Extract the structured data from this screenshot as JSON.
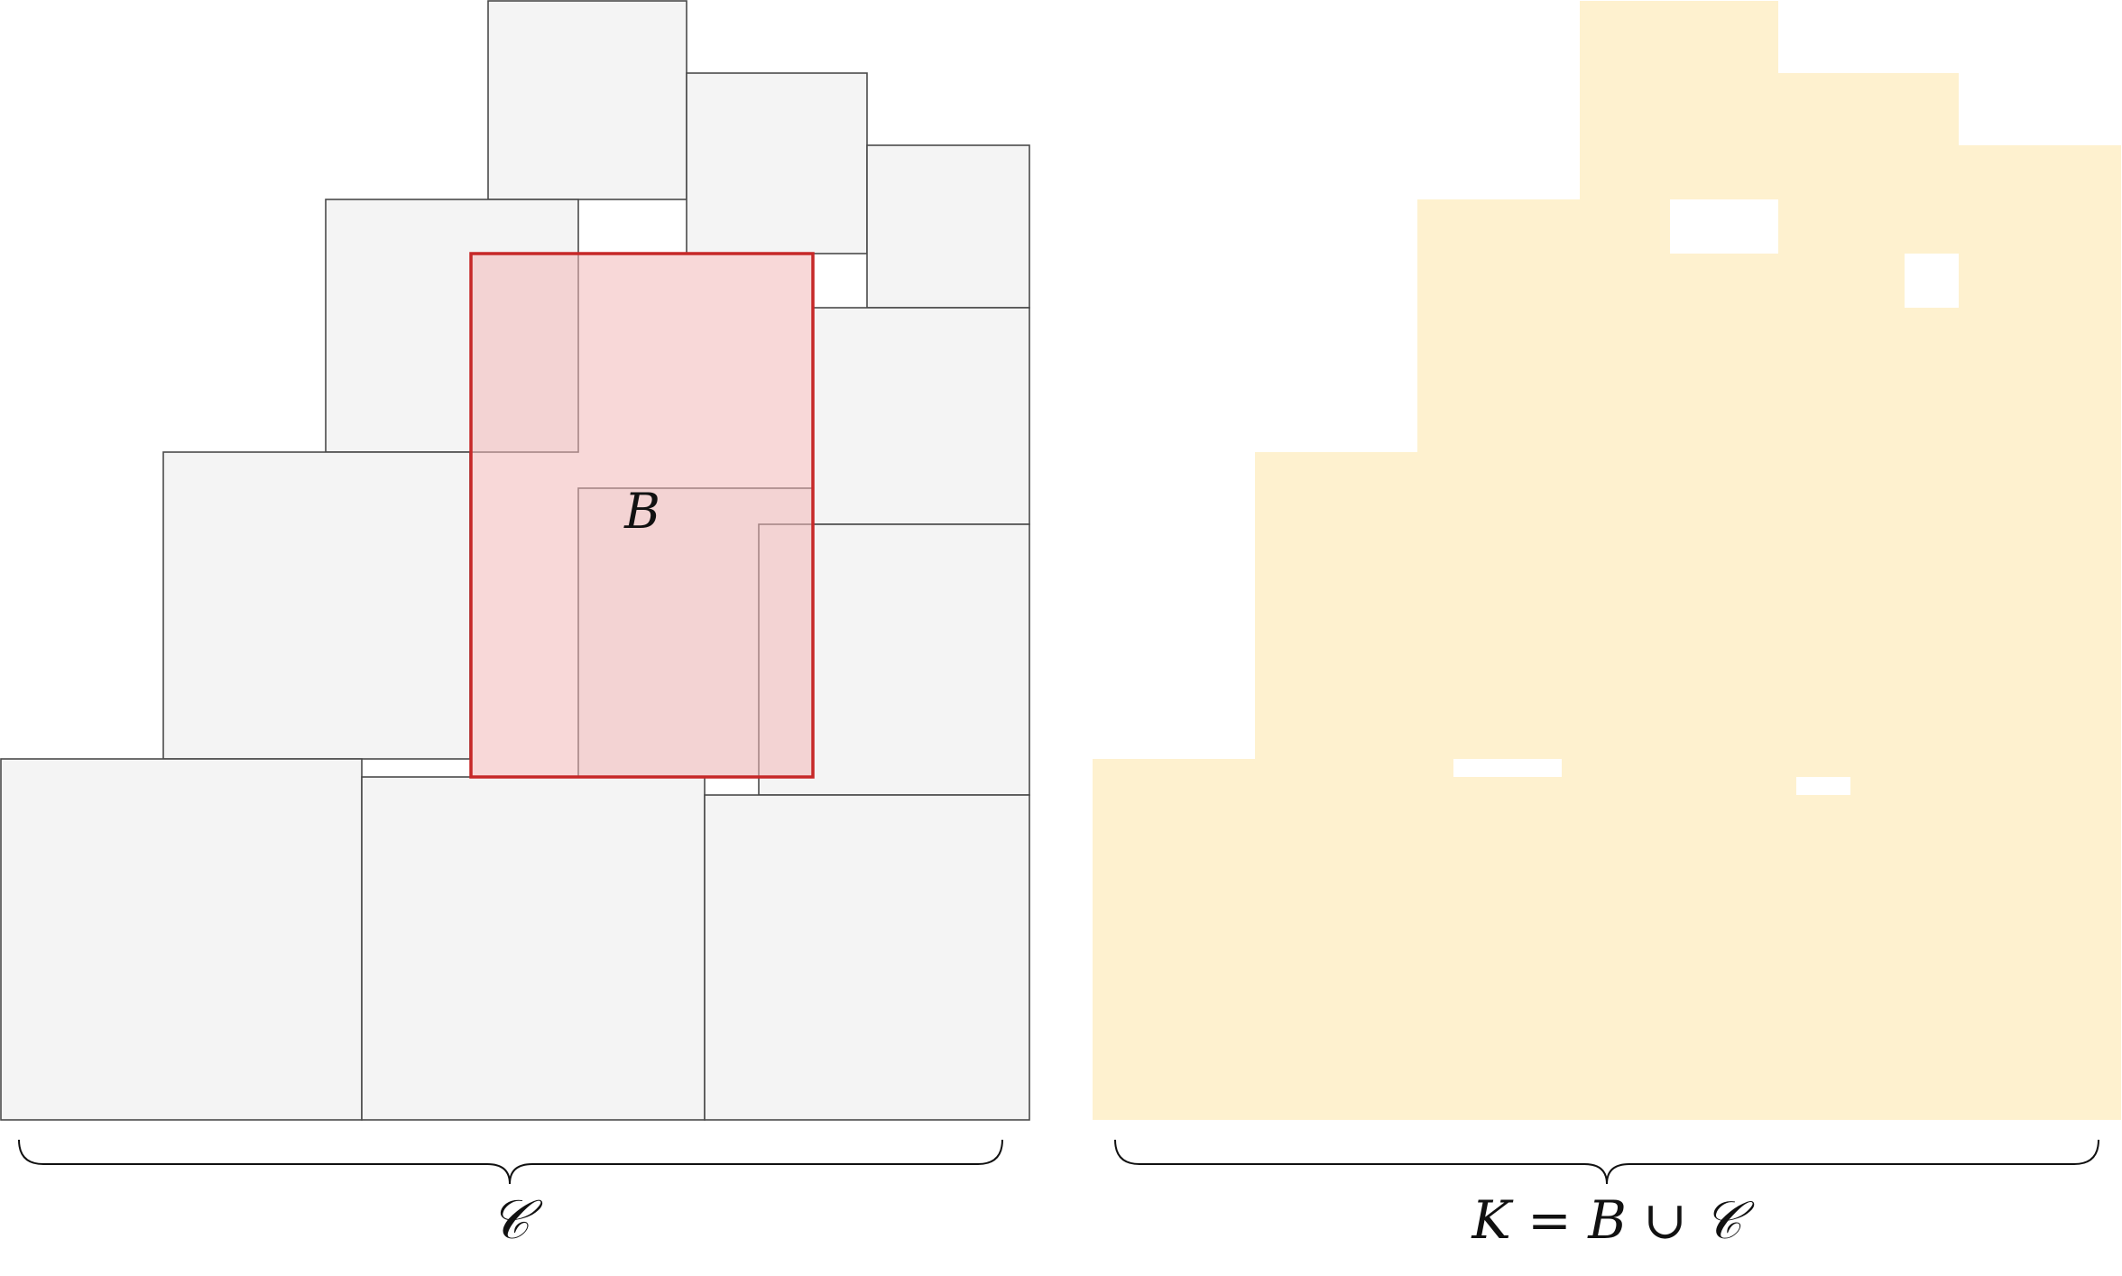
{
  "left_panel": {
    "block_label": "B",
    "collection_label": "𝒞",
    "colors": {
      "square_fill": "#f4f4f4",
      "square_stroke": "#4a4a4a",
      "block_fill": "#f3b8b8",
      "block_stroke": "#c62828"
    }
  },
  "right_panel": {
    "union_label": "K = B ∪ 𝒞",
    "colors": {
      "region_fill": "#fef1cf"
    }
  },
  "brace_color": "#111111"
}
